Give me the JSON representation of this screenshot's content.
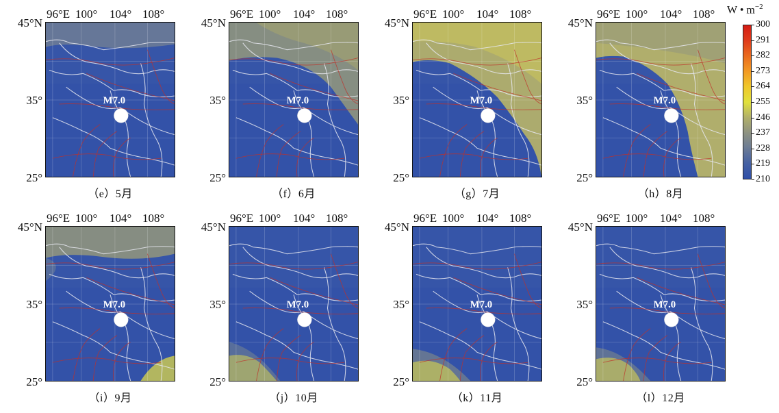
{
  "lon_ticks": [
    "96°E",
    "100°",
    "104°",
    "108°"
  ],
  "lat_ticks": [
    "45°N",
    "35°",
    "25°"
  ],
  "legend": {
    "unit_text": "W • m",
    "unit_exponent": "−2",
    "ticks": [
      "300",
      "291",
      "282",
      "273",
      "264",
      "255",
      "246",
      "237",
      "228",
      "219",
      "210"
    ],
    "colors": [
      "#2f4fa8",
      "#4561a3",
      "#6b7b95",
      "#8e9281",
      "#b1b06a",
      "#e1e13c",
      "#f0c72a",
      "#f29a23",
      "#ea6b1e",
      "#df3b1b",
      "#d51d14"
    ]
  },
  "marker_label": "M7.0",
  "panels": [
    {
      "caption": "（e）5月",
      "pattern": "may"
    },
    {
      "caption": "（f）6月",
      "pattern": "jun"
    },
    {
      "caption": "（g）7月",
      "pattern": "jul"
    },
    {
      "caption": "（h）8月",
      "pattern": "aug"
    },
    {
      "caption": "（i）9月",
      "pattern": "sep"
    },
    {
      "caption": "（j）10月",
      "pattern": "oct"
    },
    {
      "caption": "（k）11月",
      "pattern": "nov"
    },
    {
      "caption": "（l）12月",
      "pattern": "dec"
    }
  ]
}
